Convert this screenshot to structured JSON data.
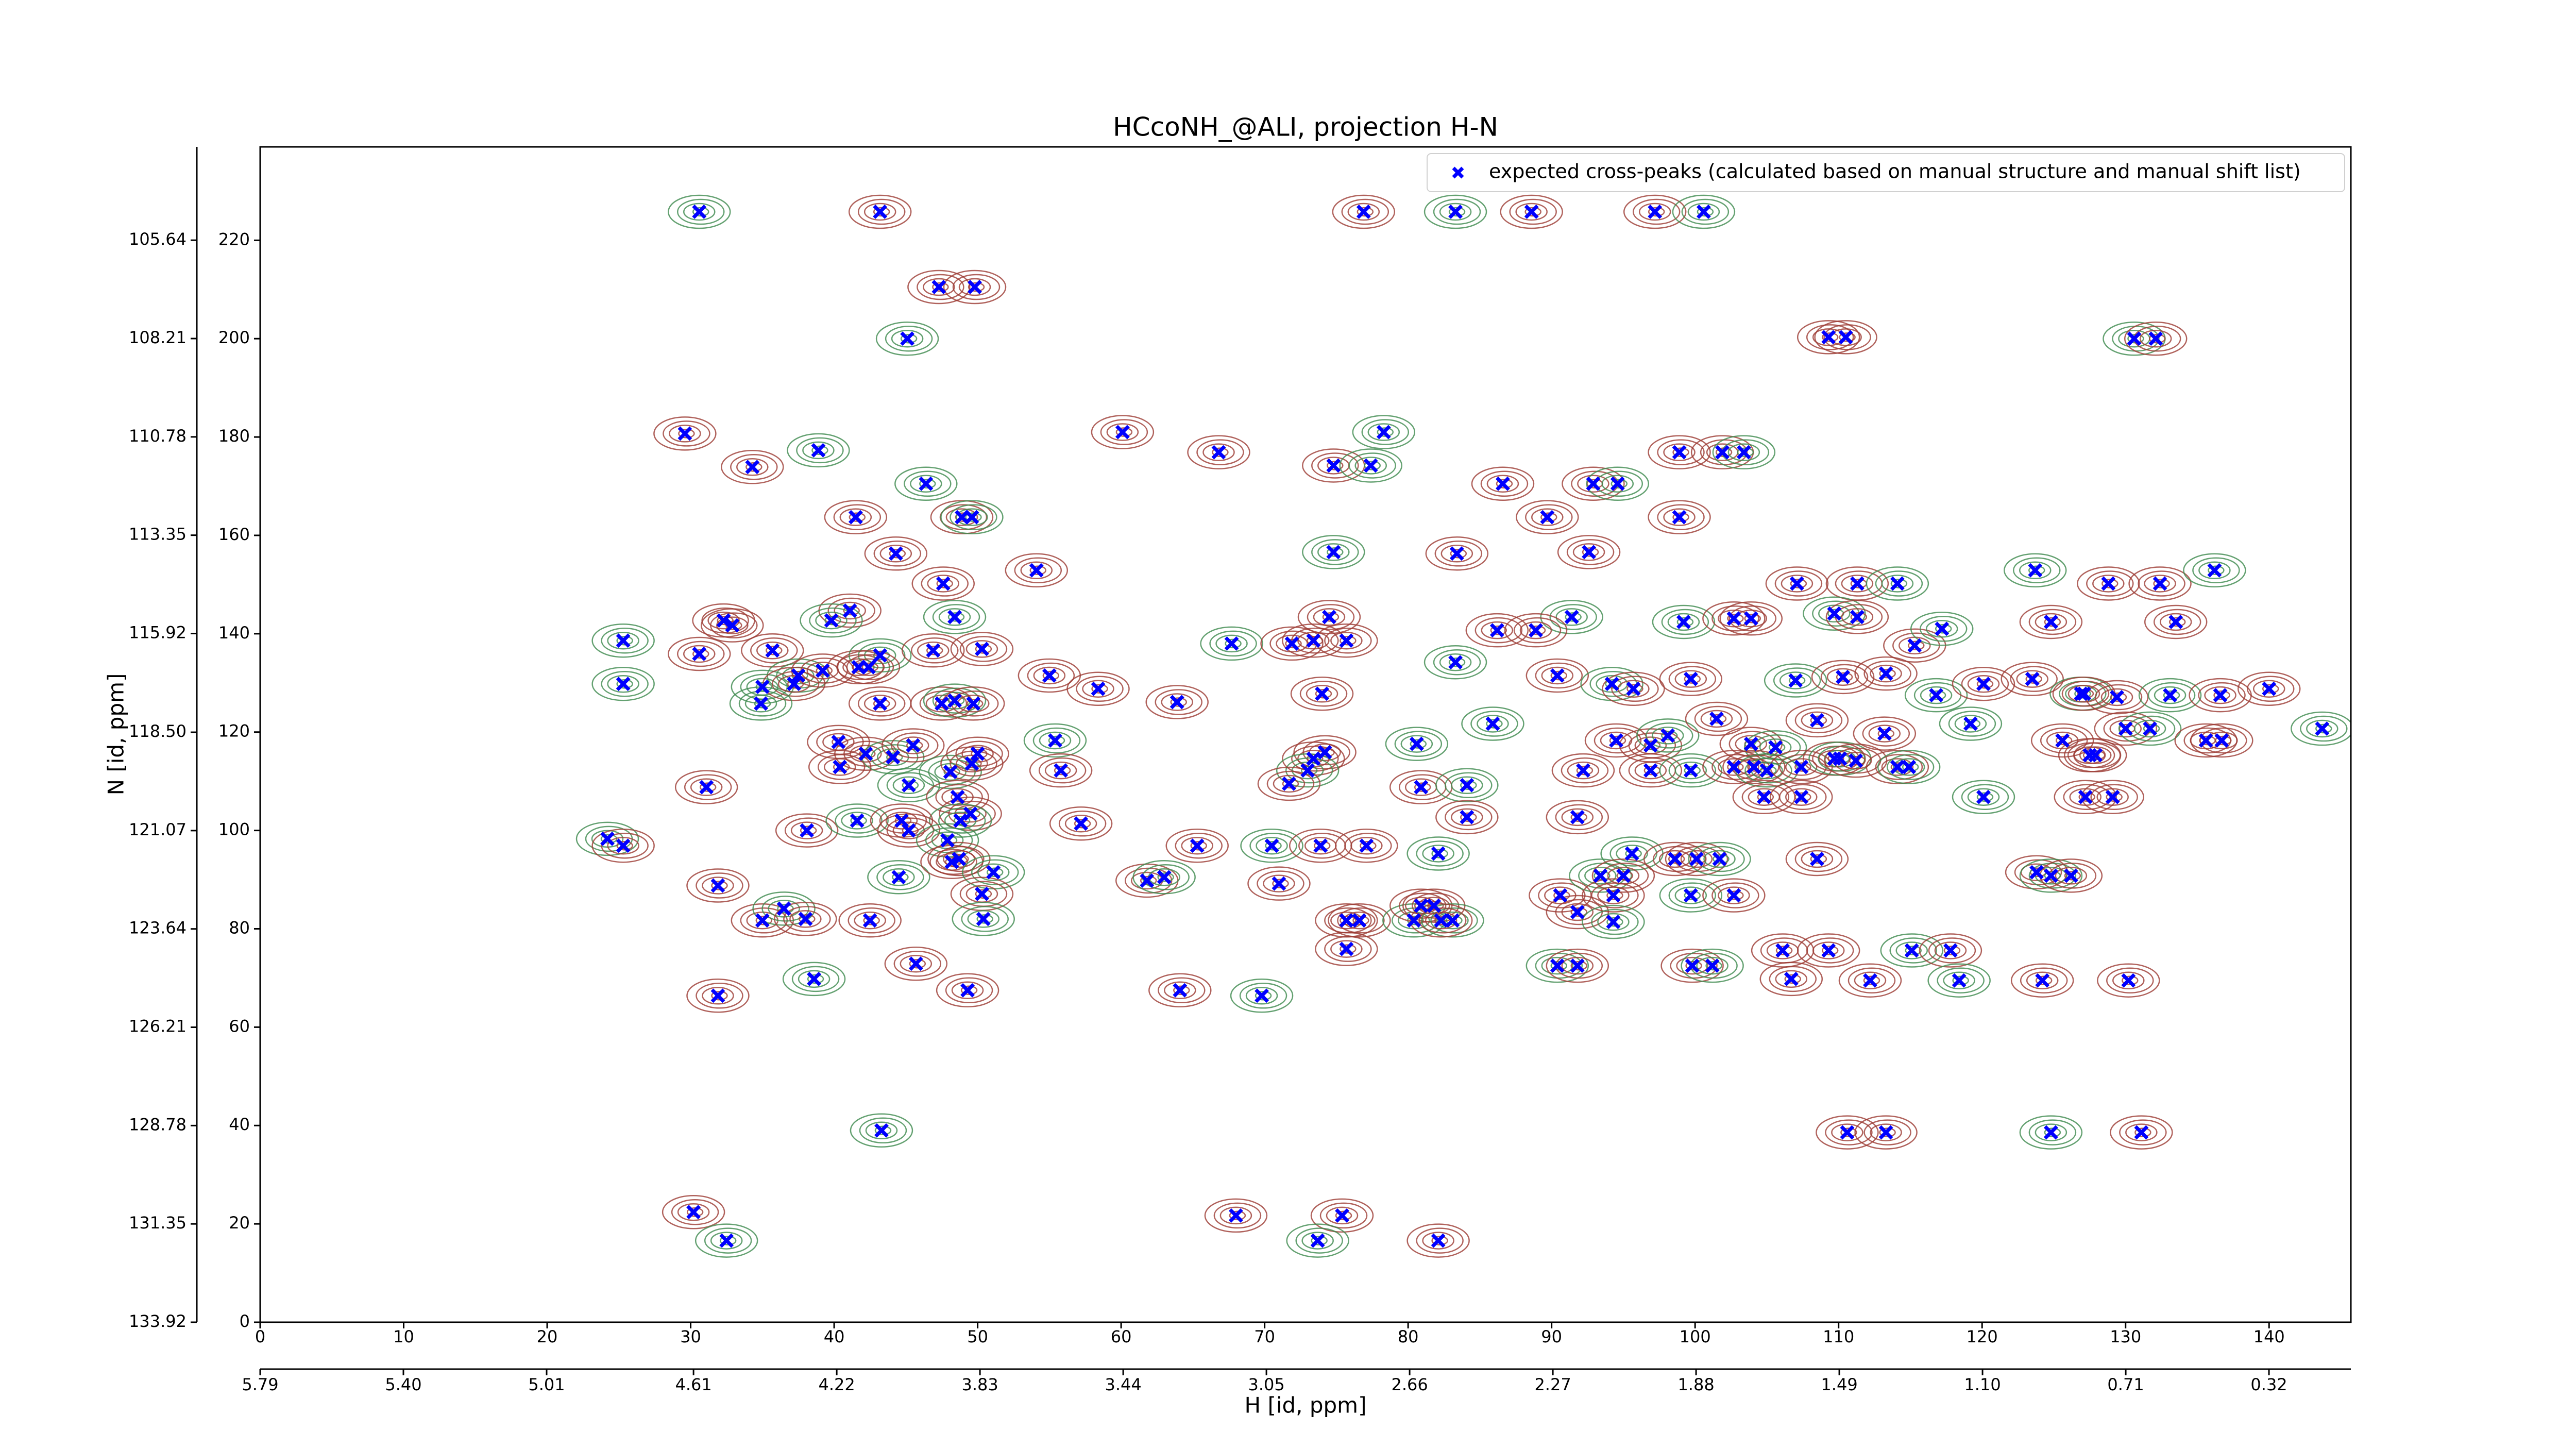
{
  "chart_data": {
    "type": "scatter",
    "title": "HCcoNH_@ALI, projection H-N",
    "x_label": "H [id, ppm]",
    "y_label": "N [id, ppm]",
    "xlim": [
      0,
      145.7
    ],
    "ylim": [
      0,
      239
    ],
    "xticks": [
      0,
      10,
      20,
      30,
      40,
      50,
      60,
      70,
      80,
      90,
      100,
      110,
      120,
      130,
      140
    ],
    "yticks": [
      0,
      20,
      40,
      60,
      80,
      100,
      120,
      140,
      160,
      180,
      200,
      220
    ],
    "x2lim": [
      5.79,
      0.097
    ],
    "x2ticks": [
      5.79,
      {
        "value": 5.4,
        "label": "5.40"
      },
      5.01,
      4.61,
      4.22,
      3.83,
      3.44,
      3.05,
      2.66,
      2.27,
      1.88,
      1.49,
      {
        "value": 1.1,
        "label": "1.10"
      },
      0.71,
      0.32
    ],
    "y2lim": [
      133.92,
      103.2
    ],
    "y2ticks": [
      133.92,
      131.35,
      128.78,
      126.21,
      123.64,
      121.07,
      {
        "value": 118.5,
        "label": "118.50"
      },
      115.92,
      113.35,
      110.78,
      108.21,
      105.64
    ],
    "legend": "upper right",
    "series": [
      {
        "name": "expected cross-peaks (calculated based on manual structure and manual shift list)",
        "color": "#0000ff",
        "x": [
          30.6,
          43.2,
          76.9,
          83.3,
          88.6,
          97.2,
          100.6,
          47.3,
          49.8,
          45.1,
          109.3,
          110.5,
          130.6,
          132.1,
          29.6,
          38.9,
          60.1,
          66.8,
          78.3,
          98.9,
          101.9,
          103.4,
          34.3,
          74.8,
          77.4,
          86.6,
          92.9,
          94.6,
          89.7,
          98.9,
          46.4,
          41.5,
          48.9,
          49.6,
          44.3,
          54.1,
          74.8,
          83.4,
          92.6,
          123.7,
          128.8,
          132.4,
          136.2,
          107.1,
          111.3,
          114.1,
          47.6,
          41.1,
          48.4,
          133.5,
          124.8,
          25.3,
          32.3,
          32.9,
          39.8,
          74.5,
          73.4,
          67.7,
          71.9,
          75.7,
          91.4,
          86.2,
          88.9,
          99.2,
          102.7,
          103.9,
          109.7,
          111.3,
          115.3,
          117.2,
          30.6,
          35.7,
          37.5,
          39.2,
          41.7,
          43.2,
          46.9,
          50.3,
          35.0,
          37.2,
          42.4,
          25.3,
          55.0,
          58.4,
          83.3,
          74.0,
          90.4,
          94.2,
          95.7,
          99.7,
          107.0,
          110.3,
          113.3,
          116.8,
          120.1,
          123.5,
          34.9,
          43.2,
          47.5,
          48.4,
          49.7,
          63.9,
          126.9,
          127.1,
          129.4,
          133.1,
          136.6,
          140.0,
          85.9,
          94.5,
          96.9,
          98.1,
          101.5,
          103.9,
          105.6,
          108.5,
          113.2,
          119.2,
          125.6,
          130.0,
          131.7,
          135.6,
          136.7,
          143.7,
          40.3,
          42.2,
          44.1,
          45.5,
          50.0,
          55.4,
          73.4,
          74.2,
          80.6,
          31.1,
          40.4,
          48.1,
          49.6,
          55.8,
          73.0,
          71.7,
          80.9,
          84.1,
          92.2,
          96.9,
          99.7,
          102.7,
          104.1,
          105.0,
          107.4,
          109.7,
          110.1,
          111.2,
          114.1,
          114.9,
          127.5,
          127.9,
          45.2,
          48.6,
          49.5,
          48.8,
          104.8,
          107.4,
          120.1,
          127.2,
          129.1,
          24.2,
          25.3,
          38.1,
          41.6,
          44.7,
          45.2,
          47.9,
          57.2,
          65.3,
          70.5,
          73.9,
          77.1,
          82.1,
          84.1,
          91.8,
          95.6,
          98.6,
          100.1,
          101.7,
          108.5,
          31.9,
          44.5,
          48.2,
          48.7,
          51.1,
          50.3,
          61.8,
          63.0,
          71.0,
          90.6,
          93.4,
          94.3,
          95.0,
          99.7,
          102.7,
          123.8,
          124.8,
          126.2,
          35.0,
          36.5,
          38.0,
          42.5,
          50.4,
          75.7,
          76.6,
          80.4,
          80.9,
          81.8,
          83.1,
          82.3,
          91.8,
          94.3,
          75.7,
          45.7,
          90.4,
          91.8,
          99.8,
          101.2,
          106.1,
          109.3,
          115.1,
          117.8,
          31.9,
          38.6,
          49.3,
          64.1,
          69.8,
          106.7,
          112.2,
          118.4,
          124.2,
          130.2,
          43.3,
          110.6,
          113.3,
          124.8,
          131.1,
          30.2,
          32.5,
          68.0,
          75.4,
          73.7,
          82.1
        ],
        "y": [
          225.8,
          225.8,
          225.8,
          225.8,
          225.8,
          225.8,
          225.8,
          210.5,
          210.5,
          200.0,
          200.3,
          200.3,
          200.0,
          200.0,
          180.7,
          177.3,
          181.0,
          176.9,
          181.0,
          176.9,
          176.9,
          176.9,
          173.9,
          174.2,
          174.2,
          170.5,
          170.5,
          170.5,
          163.7,
          163.7,
          170.5,
          163.7,
          163.7,
          163.7,
          156.3,
          152.9,
          156.6,
          156.3,
          156.6,
          152.9,
          150.2,
          150.2,
          152.9,
          150.2,
          150.2,
          150.2,
          150.2,
          144.7,
          143.4,
          142.4,
          142.4,
          138.6,
          142.7,
          141.7,
          142.7,
          143.4,
          138.6,
          138.0,
          138.0,
          138.6,
          143.4,
          140.7,
          140.7,
          142.4,
          143.1,
          143.1,
          144.1,
          143.4,
          137.6,
          141.0,
          135.9,
          136.6,
          131.5,
          132.5,
          133.2,
          135.6,
          136.6,
          136.9,
          129.2,
          129.8,
          133.2,
          129.8,
          131.5,
          128.8,
          134.2,
          127.8,
          131.5,
          129.8,
          128.8,
          130.8,
          130.5,
          131.2,
          131.9,
          127.5,
          129.8,
          130.8,
          125.8,
          125.8,
          125.8,
          126.4,
          125.8,
          126.1,
          127.8,
          127.8,
          127.1,
          127.5,
          127.5,
          128.8,
          121.7,
          118.3,
          117.3,
          119.3,
          122.7,
          117.6,
          116.9,
          122.4,
          119.7,
          121.7,
          118.3,
          120.7,
          120.7,
          118.3,
          118.3,
          120.7,
          118.0,
          115.6,
          114.9,
          117.3,
          115.6,
          118.3,
          114.6,
          115.9,
          117.6,
          108.8,
          112.9,
          111.9,
          113.6,
          112.2,
          112.2,
          109.5,
          108.8,
          109.2,
          112.2,
          112.2,
          112.2,
          112.9,
          112.9,
          112.2,
          112.9,
          114.6,
          114.6,
          114.2,
          112.9,
          112.9,
          115.3,
          115.3,
          109.2,
          106.8,
          103.4,
          102.0,
          106.8,
          106.8,
          106.8,
          106.8,
          106.8,
          98.3,
          96.9,
          100.0,
          102.0,
          102.0,
          100.0,
          98.0,
          101.4,
          96.9,
          96.9,
          96.9,
          96.9,
          95.3,
          102.7,
          102.7,
          95.3,
          94.2,
          94.2,
          94.2,
          94.2,
          88.8,
          90.5,
          93.6,
          94.2,
          91.5,
          87.1,
          89.8,
          90.5,
          89.2,
          86.8,
          90.8,
          86.8,
          90.8,
          86.8,
          86.8,
          91.5,
          90.8,
          90.8,
          81.7,
          84.1,
          82.0,
          81.7,
          82.0,
          81.7,
          81.7,
          81.7,
          84.7,
          84.7,
          81.7,
          81.7,
          83.4,
          81.4,
          75.9,
          72.9,
          72.5,
          72.5,
          72.5,
          72.5,
          75.6,
          75.6,
          75.6,
          75.6,
          66.4,
          69.8,
          67.5,
          67.5,
          66.4,
          69.8,
          69.5,
          69.5,
          69.5,
          69.5,
          39.0,
          38.6,
          38.6,
          38.6,
          38.6,
          22.4,
          16.6,
          21.7,
          21.7,
          16.6,
          16.6
        ]
      }
    ]
  }
}
